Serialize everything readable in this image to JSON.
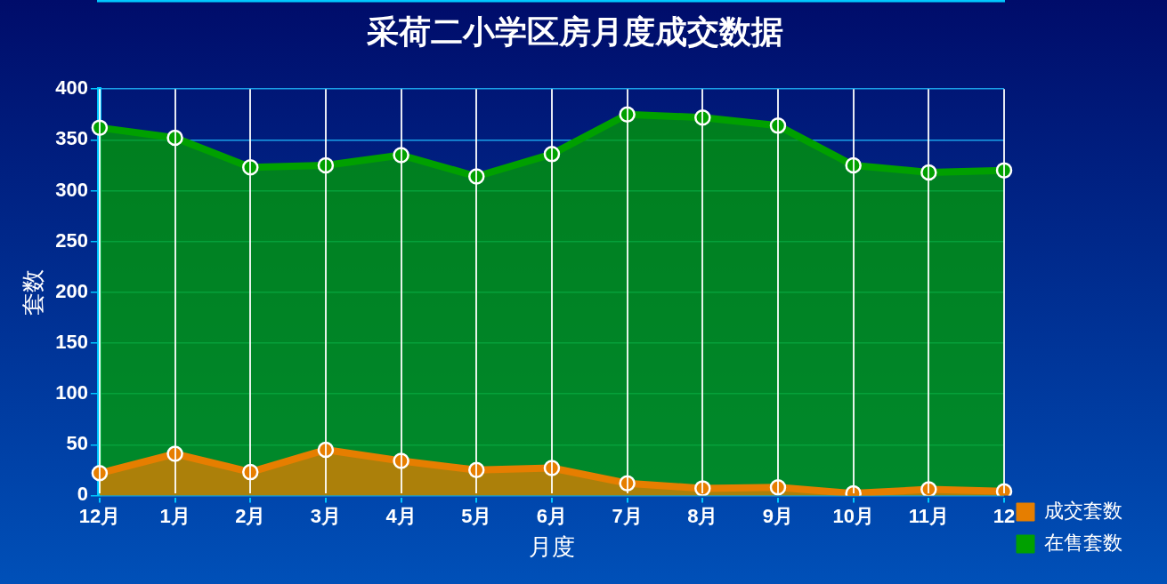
{
  "chart_data": {
    "type": "area",
    "title": "采荷二小学区房月度成交数据",
    "xlabel": "月度",
    "ylabel": "套数",
    "categories": [
      "12月",
      "1月",
      "2月",
      "3月",
      "4月",
      "5月",
      "6月",
      "7月",
      "8月",
      "9月",
      "10月",
      "11月",
      "12"
    ],
    "series": [
      {
        "name": "在售套数",
        "color": "#00a000",
        "values": [
          362,
          352,
          323,
          325,
          335,
          314,
          336,
          375,
          372,
          364,
          325,
          318,
          320
        ]
      },
      {
        "name": "成交套数",
        "color": "#e67e00",
        "values": [
          22,
          41,
          23,
          45,
          34,
          25,
          27,
          12,
          7,
          8,
          2,
          6,
          4
        ]
      }
    ],
    "ylim": [
      0,
      400
    ],
    "yticks": [
      0,
      50,
      100,
      150,
      200,
      250,
      300,
      350,
      400
    ],
    "grid": true,
    "legend": "right",
    "marker": "circle"
  }
}
